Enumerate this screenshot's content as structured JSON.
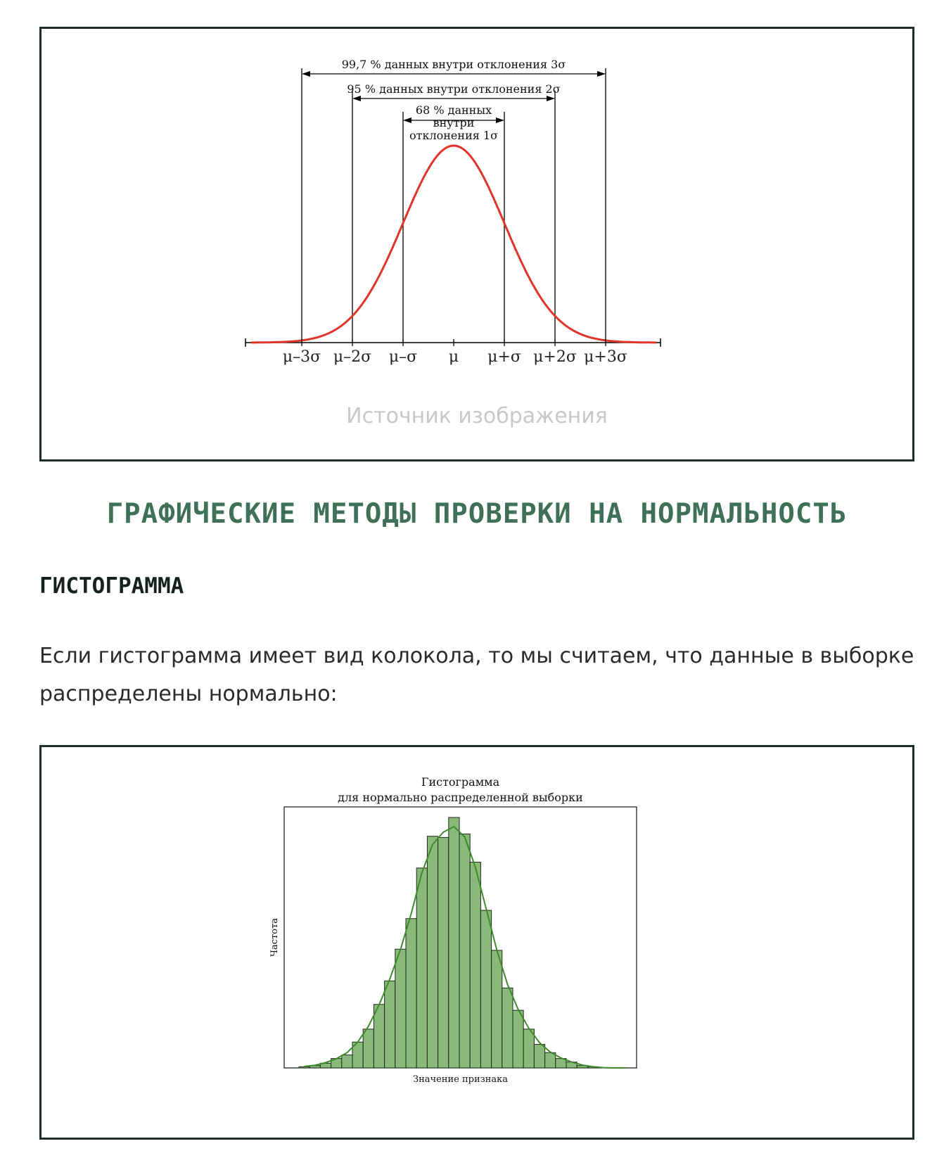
{
  "figure1": {
    "caption": "Источник изображения",
    "chart_data": {
      "type": "line",
      "series": [
        {
          "distribution": "normal",
          "mean": 0,
          "sd": 1,
          "xlim": [
            -4,
            4
          ]
        }
      ],
      "xticks": [
        "μ–3σ",
        "μ–2σ",
        "μ–σ",
        "μ",
        "μ+σ",
        "μ+2σ",
        "μ+3σ"
      ],
      "xtick_values": [
        -3,
        -2,
        -1,
        0,
        1,
        2,
        3
      ],
      "annotations": [
        {
          "text_lines": [
            "99,7 % данных внутри отклонения 3σ"
          ],
          "from": -3,
          "to": 3
        },
        {
          "text_lines": [
            "95 % данных внутри отклонения 2σ"
          ],
          "from": -2,
          "to": 2
        },
        {
          "text_lines": [
            "68 % данных",
            "внутри",
            "отклонения 1σ"
          ],
          "from": -1,
          "to": 1
        }
      ],
      "curve_color": "#e0342a"
    }
  },
  "section_title": "ГРАФИЧЕСКИЕ МЕТОДЫ ПРОВЕРКИ НА НОРМАЛЬНОСТЬ",
  "subsection_title": "ГИСТОГРАММА",
  "paragraph": "Если гистограмма имеет вид колокола, то мы считаем, что данные в выборке распределены нормально:",
  "figure2": {
    "chart_data": {
      "type": "bar",
      "title": "Гистограмма\nдля нормально распределенной выборки",
      "title_lines": [
        "Гистограмма",
        "для нормально распределенной выборки"
      ],
      "xlabel": "Значение признака",
      "ylabel": "Частота",
      "bins": 30,
      "values": [
        1,
        2,
        4,
        8,
        11,
        22,
        33,
        54,
        74,
        101,
        127,
        170,
        197,
        196,
        213,
        199,
        175,
        134,
        100,
        68,
        49,
        33,
        20,
        13,
        8,
        5,
        2,
        1,
        0,
        0
      ],
      "kde": true,
      "bar_color": "#8aba7a",
      "line_color": "#3f8a2d"
    }
  }
}
